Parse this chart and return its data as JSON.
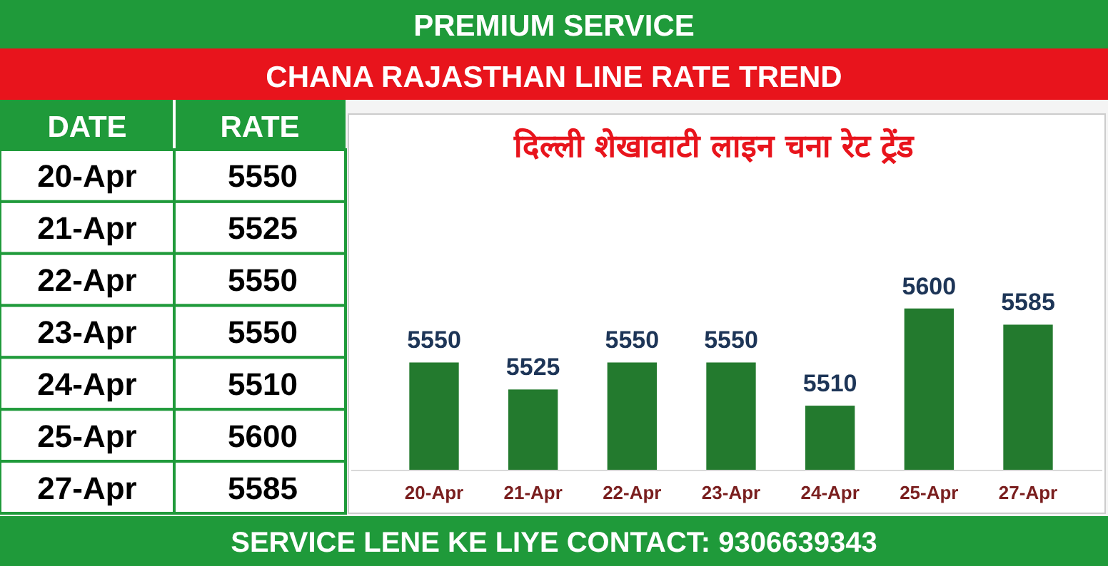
{
  "chart_data": [
    {
      "type": "other",
      "annotations": [
        "DATE",
        "RATE",
        "20-Apr",
        "5550",
        "21-Apr",
        "5525",
        "22-Apr",
        "5550",
        "23-Apr",
        "5550",
        "24-Apr",
        "5510",
        "25-Apr",
        "5600",
        "27-Apr",
        "5585"
      ]
    },
    {
      "type": "bar",
      "title": "CHANA RAJASTHAN LINE RATE TREND",
      "subtitle": "दिल्ली शेखावाटी लाइन चना रेट ट्रेंड",
      "annotations": [
        "PREMIUM SERVICE",
        "SERVICE LENE KE LIYE CONTACT: 9306639343"
      ],
      "categories": [
        "20-Apr",
        "21-Apr",
        "22-Apr",
        "23-Apr",
        "24-Apr",
        "25-Apr",
        "27-Apr"
      ],
      "values": [
        5550,
        5525,
        5550,
        5550,
        5510,
        5600,
        5585
      ],
      "color": "#237a2e",
      "ylim": [
        5450,
        5780
      ],
      "data_labels": true,
      "tick_labels": "x"
    }
  ]
}
